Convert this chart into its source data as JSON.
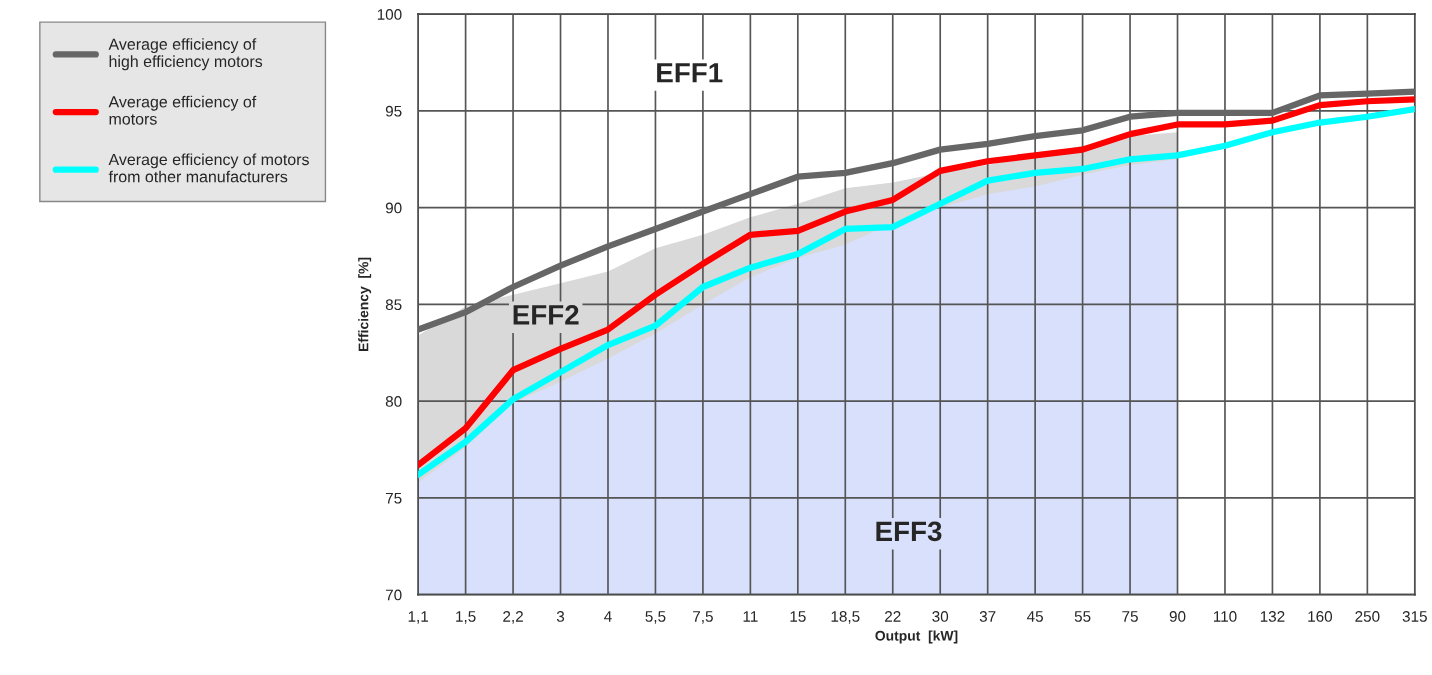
{
  "chart_data": {
    "type": "line",
    "xlabel": "Output  [kW]",
    "ylabel": "Efficiency  [%]",
    "categories": [
      "1,1",
      "1,5",
      "2,2",
      "3",
      "4",
      "5,5",
      "7,5",
      "11",
      "15",
      "18,5",
      "22",
      "30",
      "37",
      "45",
      "55",
      "75",
      "90",
      "110",
      "132",
      "160",
      "250",
      "315"
    ],
    "series": [
      {
        "type": "area",
        "color": "#d9d9d9",
        "values": [
          83.4,
          84.9,
          85.5,
          86.1,
          86.7,
          87.9,
          88.6,
          89.5,
          90.2,
          91.0,
          91.3,
          91.8,
          92.2,
          92.7,
          93.2,
          93.7,
          93.9,
          null,
          null,
          null,
          null,
          null
        ]
      },
      {
        "type": "area",
        "color": "#d8e0fc",
        "values": [
          75.8,
          77.6,
          79.9,
          81.0,
          82.2,
          83.5,
          85.0,
          86.4,
          87.4,
          88.1,
          89.2,
          90.0,
          90.7,
          91.1,
          91.7,
          92.2,
          92.5,
          null,
          null,
          null,
          null,
          null
        ]
      },
      {
        "name": "Average efficiency of\nhigh efficiency motors",
        "color": "#666666",
        "values": [
          83.7,
          84.6,
          85.9,
          87.0,
          88.0,
          88.9,
          89.8,
          90.7,
          91.6,
          91.8,
          92.3,
          93.0,
          93.3,
          93.7,
          94.0,
          94.7,
          94.9,
          94.9,
          94.9,
          95.8,
          95.9,
          96.0
        ]
      },
      {
        "name": "Average efficiency of\nmotors",
        "color": "#ff0000",
        "values": [
          76.7,
          78.6,
          81.6,
          82.7,
          83.7,
          85.5,
          87.1,
          88.6,
          88.8,
          89.8,
          90.4,
          91.9,
          92.4,
          92.7,
          93.0,
          93.8,
          94.3,
          94.3,
          94.5,
          95.3,
          95.5,
          95.6
        ]
      },
      {
        "name": "Average efficiency of motors\nfrom other manufacturers",
        "color": "#00ffff",
        "values": [
          76.2,
          77.9,
          80.1,
          81.5,
          82.9,
          83.9,
          85.9,
          86.9,
          87.6,
          88.9,
          89.0,
          90.2,
          91.4,
          91.8,
          92.0,
          92.5,
          92.7,
          93.2,
          93.9,
          94.4,
          94.7,
          95.1
        ]
      }
    ],
    "ylim": [
      70,
      100
    ],
    "yticks": [
      70,
      75,
      80,
      85,
      90,
      95,
      100
    ],
    "grid": true,
    "legend": "left",
    "marker": "none",
    "line_style": "solid",
    "annotations": [
      "EFF1",
      "EFF2",
      "EFF3"
    ]
  }
}
